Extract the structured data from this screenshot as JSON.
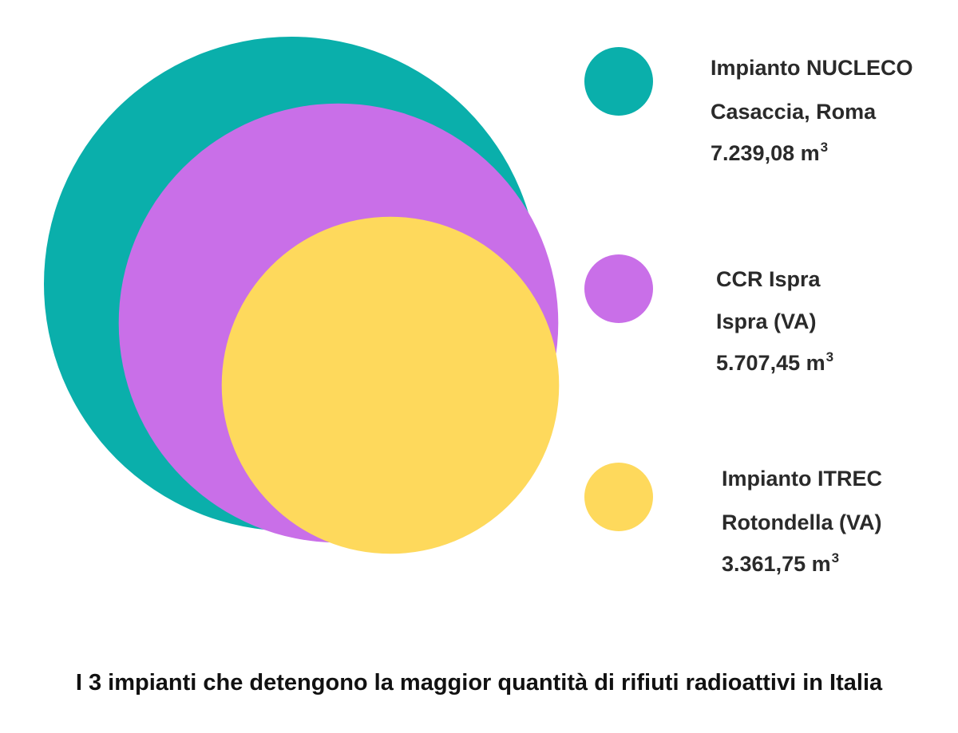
{
  "chart_data": {
    "type": "proportional-area-circles",
    "title": "I 3 impianti che detengono la maggior quantità di rifiuti radioattivi in Italia",
    "unit": "m3",
    "items": [
      {
        "name": "Impianto NUCLECO",
        "location": "Casaccia, Roma",
        "value": 7239.08,
        "label": "7.239,08 m",
        "unit_sup": "3",
        "color": "#0aafab"
      },
      {
        "name": "CCR Ispra",
        "location": "Ispra (VA)",
        "value": 5707.45,
        "label": "5.707,45 m",
        "unit_sup": "3",
        "color": "#c96fe8"
      },
      {
        "name": "Impianto ITREC",
        "location": "Rotondella (VA)",
        "value": 3361.75,
        "label": "3.361,75 m",
        "unit_sup": "3",
        "color": "#fed95c"
      }
    ]
  }
}
